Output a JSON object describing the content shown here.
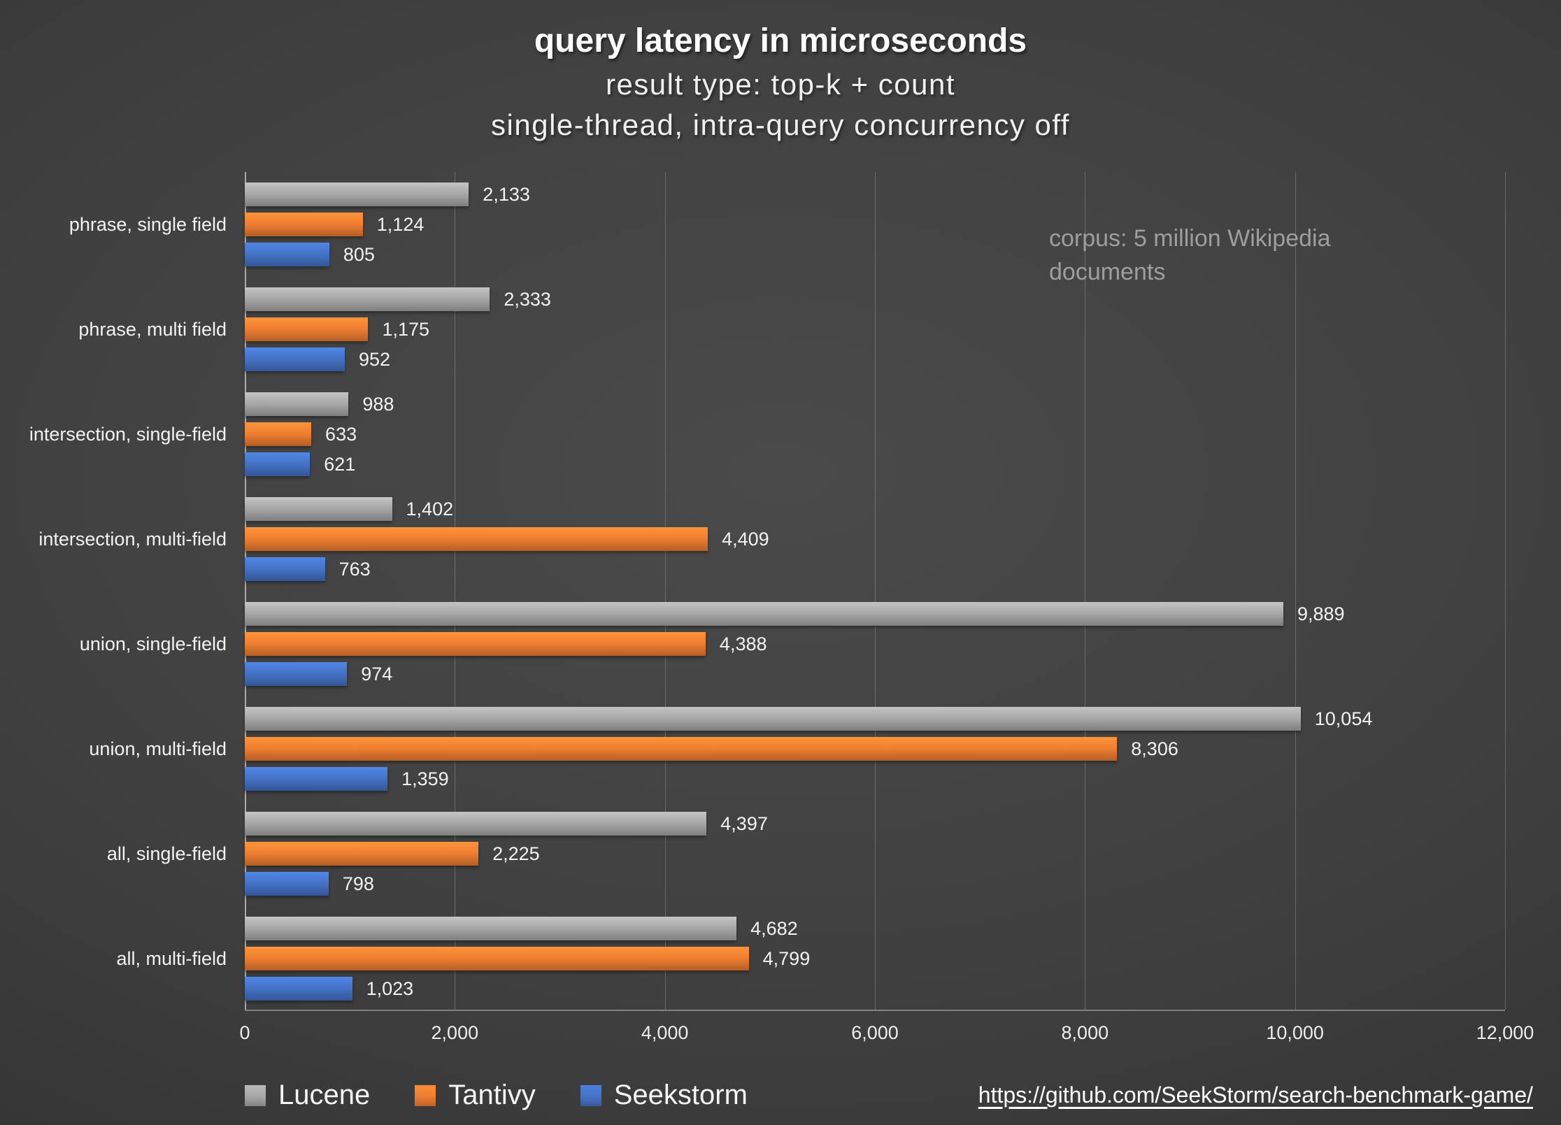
{
  "chart_data": {
    "type": "bar",
    "orientation": "horizontal",
    "title": "query latency in microseconds",
    "subtitle": "result type: top-k + count",
    "subtitle2": "single-thread, intra-query concurrency off",
    "annotation": "corpus: 5 million Wikipedia documents",
    "categories": [
      "phrase, single field",
      "phrase, multi field",
      "intersection, single-field",
      "intersection, multi-field",
      "union, single-field",
      "union, multi-field",
      "all, single-field",
      "all, multi-field"
    ],
    "series": [
      {
        "name": "Lucene",
        "key": "lucene",
        "color": "#a6a6a6",
        "values": [
          2133,
          2333,
          988,
          1402,
          9889,
          10054,
          4397,
          4682
        ]
      },
      {
        "name": "Tantivy",
        "key": "tantivy",
        "color": "#ed7d31",
        "values": [
          1124,
          1175,
          633,
          4409,
          4388,
          8306,
          2225,
          4799
        ]
      },
      {
        "name": "Seekstorm",
        "key": "seekstorm",
        "color": "#4472c4",
        "values": [
          805,
          952,
          621,
          763,
          974,
          1359,
          798,
          1023
        ]
      }
    ],
    "xlim": [
      0,
      12000
    ],
    "xticks": [
      0,
      2000,
      4000,
      6000,
      8000,
      10000,
      12000
    ],
    "xtick_labels": [
      "0",
      "2,000",
      "4,000",
      "6,000",
      "8,000",
      "10,000",
      "12,000"
    ],
    "xlabel": "",
    "ylabel": "",
    "grid": true,
    "legend_position": "bottom-left"
  },
  "footer": {
    "link_text": "https://github.com/SeekStorm/search-benchmark-game/"
  }
}
